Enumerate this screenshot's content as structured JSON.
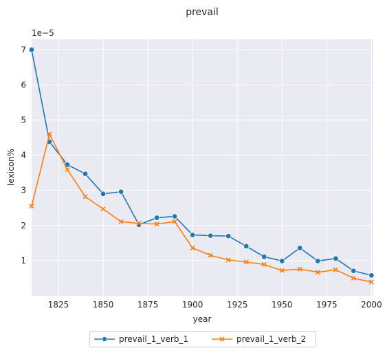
{
  "chart_data": {
    "type": "line",
    "title": "prevail",
    "xlabel": "year",
    "ylabel": "lexicon%",
    "y_scale_label": "1e−5",
    "xlim": [
      1810,
      2001
    ],
    "ylim": [
      0.0,
      7.3
    ],
    "y_multiplier": 1e-05,
    "x_ticks": [
      1825,
      1850,
      1875,
      1900,
      1925,
      1950,
      1975,
      2000
    ],
    "y_ticks": [
      1,
      2,
      3,
      4,
      5,
      6,
      7
    ],
    "grid": true,
    "legend_position": "bottom-center-outside",
    "x": [
      1810,
      1820,
      1830,
      1840,
      1850,
      1860,
      1870,
      1880,
      1890,
      1900,
      1910,
      1920,
      1930,
      1940,
      1950,
      1960,
      1970,
      1980,
      1990,
      2000
    ],
    "series": [
      {
        "name": "prevail_1_verb_1",
        "color": "#1f77b4",
        "marker": "circle",
        "values": [
          7.0,
          4.38,
          3.73,
          3.47,
          2.9,
          2.96,
          2.02,
          2.22,
          2.26,
          1.73,
          1.71,
          1.7,
          1.41,
          1.11,
          0.99,
          1.36,
          0.99,
          1.06,
          0.71,
          0.58
        ]
      },
      {
        "name": "prevail_1_verb_2",
        "color": "#ff7f0e",
        "marker": "x",
        "values": [
          2.55,
          4.6,
          3.59,
          2.82,
          2.47,
          2.11,
          2.06,
          2.04,
          2.11,
          1.36,
          1.15,
          1.02,
          0.96,
          0.89,
          0.72,
          0.76,
          0.67,
          0.74,
          0.5,
          0.39
        ]
      }
    ]
  }
}
